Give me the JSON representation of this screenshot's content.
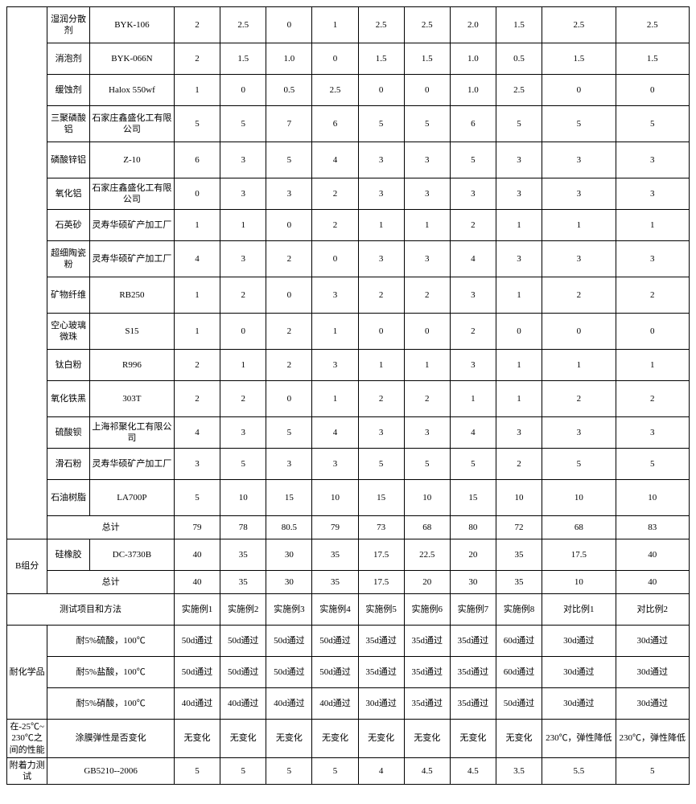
{
  "rows": [
    {
      "c0": "",
      "c1": "湿润分散剂",
      "c2": "BYK-106",
      "v": [
        "2",
        "2.5",
        "0",
        "1",
        "2.5",
        "2.5",
        "2.0",
        "1.5",
        "2.5",
        "2.5"
      ]
    },
    {
      "c1": "消泡剂",
      "c2": "BYK-066N",
      "v": [
        "2",
        "1.5",
        "1.0",
        "0",
        "1.5",
        "1.5",
        "1.0",
        "0.5",
        "1.5",
        "1.5"
      ]
    },
    {
      "c1": "缓蚀剂",
      "c2": "Halox 550wf",
      "v": [
        "1",
        "0",
        "0.5",
        "2.5",
        "0",
        "0",
        "1.0",
        "2.5",
        "0",
        "0"
      ]
    },
    {
      "c1": "三聚磷酸铝",
      "c2": "石家庄鑫盛化工有限公司",
      "v": [
        "5",
        "5",
        "7",
        "6",
        "5",
        "5",
        "6",
        "5",
        "5",
        "5"
      ]
    },
    {
      "c1": "磷酸锌铝",
      "c2": "Z-10",
      "v": [
        "6",
        "3",
        "5",
        "4",
        "3",
        "3",
        "5",
        "3",
        "3",
        "3"
      ]
    },
    {
      "c1": "氧化铝",
      "c2": "石家庄鑫盛化工有限公司",
      "v": [
        "0",
        "3",
        "3",
        "2",
        "3",
        "3",
        "3",
        "3",
        "3",
        "3"
      ]
    },
    {
      "c1": "石英砂",
      "c2": "灵寿华硕矿产加工厂",
      "v": [
        "1",
        "1",
        "0",
        "2",
        "1",
        "1",
        "2",
        "1",
        "1",
        "1"
      ]
    },
    {
      "c1": "超细陶瓷粉",
      "c2": "灵寿华硕矿产加工厂",
      "v": [
        "4",
        "3",
        "2",
        "0",
        "3",
        "3",
        "4",
        "3",
        "3",
        "3"
      ]
    },
    {
      "c1": "矿物纤维",
      "c2": "RB250",
      "v": [
        "1",
        "2",
        "0",
        "3",
        "2",
        "2",
        "3",
        "1",
        "2",
        "2"
      ]
    },
    {
      "c1": "空心玻璃微珠",
      "c2": "S15",
      "v": [
        "1",
        "0",
        "2",
        "1",
        "0",
        "0",
        "2",
        "0",
        "0",
        "0"
      ]
    },
    {
      "c1": "钛白粉",
      "c2": "R996",
      "v": [
        "2",
        "1",
        "2",
        "3",
        "1",
        "1",
        "3",
        "1",
        "1",
        "1"
      ]
    },
    {
      "c1": "氧化铁黑",
      "c2": "303T",
      "v": [
        "2",
        "2",
        "0",
        "1",
        "2",
        "2",
        "1",
        "1",
        "2",
        "2"
      ]
    },
    {
      "c1": "硫酸钡",
      "c2": "上海祁聚化工有限公司",
      "v": [
        "4",
        "3",
        "5",
        "4",
        "3",
        "3",
        "4",
        "3",
        "3",
        "3"
      ]
    },
    {
      "c1": "滑石粉",
      "c2": "灵寿华硕矿产加工厂",
      "v": [
        "3",
        "5",
        "3",
        "3",
        "5",
        "5",
        "5",
        "2",
        "5",
        "5"
      ]
    },
    {
      "c1": "石油树脂",
      "c2": "LA700P",
      "v": [
        "5",
        "10",
        "15",
        "10",
        "15",
        "10",
        "15",
        "10",
        "10",
        "10"
      ]
    }
  ],
  "totalA": {
    "label": "总计",
    "v": [
      "79",
      "78",
      "80.5",
      "79",
      "73",
      "68",
      "80",
      "72",
      "68",
      "83"
    ]
  },
  "groupB": {
    "c0": "B组分",
    "c1": "硅橡胶",
    "c2": "DC-3730B",
    "v": [
      "40",
      "35",
      "30",
      "35",
      "17.5",
      "22.5",
      "20",
      "35",
      "17.5",
      "40"
    ]
  },
  "totalB": {
    "label": "总计",
    "v": [
      "40",
      "35",
      "30",
      "35",
      "17.5",
      "20",
      "30",
      "35",
      "10",
      "40"
    ]
  },
  "testHeader": {
    "label": "测试项目和方法",
    "v": [
      "实施例1",
      "实施例2",
      "实施例3",
      "实施例4",
      "实施例5",
      "实施例6",
      "实施例7",
      "实施例8",
      "对比例1",
      "对比例2"
    ]
  },
  "chem": {
    "c0": "耐化学品",
    "r1": {
      "c2": "耐5%硫酸，100℃",
      "v": [
        "50d通过",
        "50d通过",
        "50d通过",
        "50d通过",
        "35d通过",
        "35d通过",
        "35d通过",
        "60d通过",
        "30d通过",
        "30d通过"
      ]
    },
    "r2": {
      "c2": "耐5%盐酸，100℃",
      "v": [
        "50d通过",
        "50d通过",
        "50d通过",
        "50d通过",
        "35d通过",
        "35d通过",
        "35d通过",
        "60d通过",
        "30d通过",
        "30d通过"
      ]
    },
    "r3": {
      "c2": "耐5%硝酸，100℃",
      "v": [
        "40d通过",
        "40d通过",
        "40d通过",
        "40d通过",
        "30d通过",
        "35d通过",
        "35d通过",
        "50d通过",
        "30d通过",
        "30d通过"
      ]
    }
  },
  "elastic": {
    "c0": "在-25℃~230℃之间的性能",
    "c2": "涂膜弹性是否变化",
    "v": [
      "无变化",
      "无变化",
      "无变化",
      "无变化",
      "无变化",
      "无变化",
      "无变化",
      "无变化",
      "230℃，弹性降低",
      "230℃，弹性降低"
    ]
  },
  "adhesion": {
    "c0": "附着力测试",
    "c2": "GB5210--2006",
    "v": [
      "5",
      "5",
      "5",
      "5",
      "4",
      "4.5",
      "4.5",
      "3.5",
      "5.5",
      "5"
    ]
  }
}
